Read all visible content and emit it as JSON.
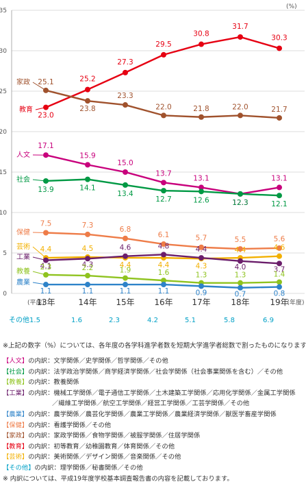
{
  "chart_data": {
    "type": "line",
    "unit_label": "(%)",
    "ylim": [
      0,
      35
    ],
    "yticks": [
      0,
      5,
      10,
      15,
      20,
      25,
      30,
      35
    ],
    "era_label": "(平成)",
    "year_suffix_label": "(年度)",
    "categories": [
      "13年",
      "14年",
      "15年",
      "16年",
      "17年",
      "18年",
      "19年"
    ],
    "series": [
      {
        "name": "教育",
        "color": "#e60012",
        "values": [
          23.0,
          25.2,
          27.3,
          29.5,
          30.8,
          31.7,
          30.3
        ]
      },
      {
        "name": "家政",
        "color": "#a0522d",
        "values": [
          25.1,
          23.8,
          23.3,
          22.0,
          21.8,
          22.0,
          21.7
        ]
      },
      {
        "name": "人文",
        "color": "#c8007c",
        "values": [
          17.1,
          15.9,
          15.0,
          13.7,
          13.1,
          12.3,
          13.1
        ]
      },
      {
        "name": "社会",
        "color": "#009944",
        "values": [
          13.9,
          14.1,
          13.4,
          12.7,
          12.6,
          12.3,
          12.1
        ]
      },
      {
        "name": "保健",
        "color": "#ee7c48",
        "values": [
          7.5,
          7.3,
          6.8,
          6.1,
          5.7,
          5.5,
          5.6
        ]
      },
      {
        "name": "芸術",
        "color": "#f2b000",
        "values": [
          4.4,
          4.5,
          4.4,
          4.4,
          4.3,
          4.4,
          4.6
        ]
      },
      {
        "name": "工業",
        "color": "#6b1e6b",
        "values": [
          4.1,
          4.3,
          4.6,
          4.8,
          4.4,
          4.0,
          3.7
        ]
      },
      {
        "name": "教養",
        "color": "#8fc31f",
        "values": [
          2.3,
          2.2,
          1.9,
          1.6,
          1.3,
          1.3,
          1.4
        ]
      },
      {
        "name": "農業",
        "color": "#2e83c9",
        "values": [
          1.1,
          1.1,
          1.1,
          1.1,
          0.9,
          0.7,
          0.8
        ]
      }
    ],
    "other_row": {
      "name": "その他",
      "color": "#00a0c6",
      "values": [
        "1.5",
        "1.6",
        "2.3",
        "4.2",
        "5.1",
        "5.8",
        "6.9"
      ]
    }
  },
  "footnote": "※上記の数字（%）については、各年度の各学科進学者数を短期大学進学者総数で割ったものになります。",
  "legend": [
    {
      "key": "【人文】",
      "color": "#c8007c",
      "mid": "の内訳：",
      "lines": [
        "文学関係／史学関係／哲学関係／その他"
      ]
    },
    {
      "key": "【社会】",
      "color": "#009944",
      "mid": "の内訳：",
      "lines": [
        "法学政治学関係／商学経済学関係／社会学関係（社会事業関係を含む）／その他"
      ]
    },
    {
      "key": "【教養】",
      "color": "#8fc31f",
      "mid": "の内訳：",
      "lines": [
        "教養関係"
      ]
    },
    {
      "key": "【工業】",
      "color": "#6b1e6b",
      "mid": "の内訳：",
      "lines": [
        "機械工学関係／電子通信工学関係／土木建築工学関係／応用化学関係／金属工学関係",
        "／繊維工学関係／航空工学関係／経営工学関係／工芸学関係／その他"
      ]
    },
    {
      "key": "【農業】",
      "color": "#2e83c9",
      "mid": "の内訳：",
      "lines": [
        "農学関係／農芸化学関係／農業工学関係／農業経済学関係／獣医学畜産学関係"
      ]
    },
    {
      "key": "【保健】",
      "color": "#ee7c48",
      "mid": "の内訳：",
      "lines": [
        "看護学関係／その他"
      ]
    },
    {
      "key": "【家政】",
      "color": "#a0522d",
      "mid": "の内訳：",
      "lines": [
        "家政学関係／食物学関係／被服学関係／住居学関係"
      ]
    },
    {
      "key": "【教育】",
      "color": "#e60012",
      "mid": "の内訳：",
      "lines": [
        "初等教育／幼稚園教育／体育関係／その他"
      ]
    },
    {
      "key": "【芸術】",
      "color": "#f2b000",
      "mid": "の内訳：",
      "lines": [
        "美術関係／デザイン関係／音楽関係／その他"
      ]
    },
    {
      "key": "【その他】",
      "color": "#00a0c6",
      "mid": "の内訳：",
      "lines": [
        "理学関係／秘書関係／その他"
      ]
    }
  ],
  "closing_note": "※ 内訳については、平成19年度学校基本調査報告書の内容を記載しております。"
}
